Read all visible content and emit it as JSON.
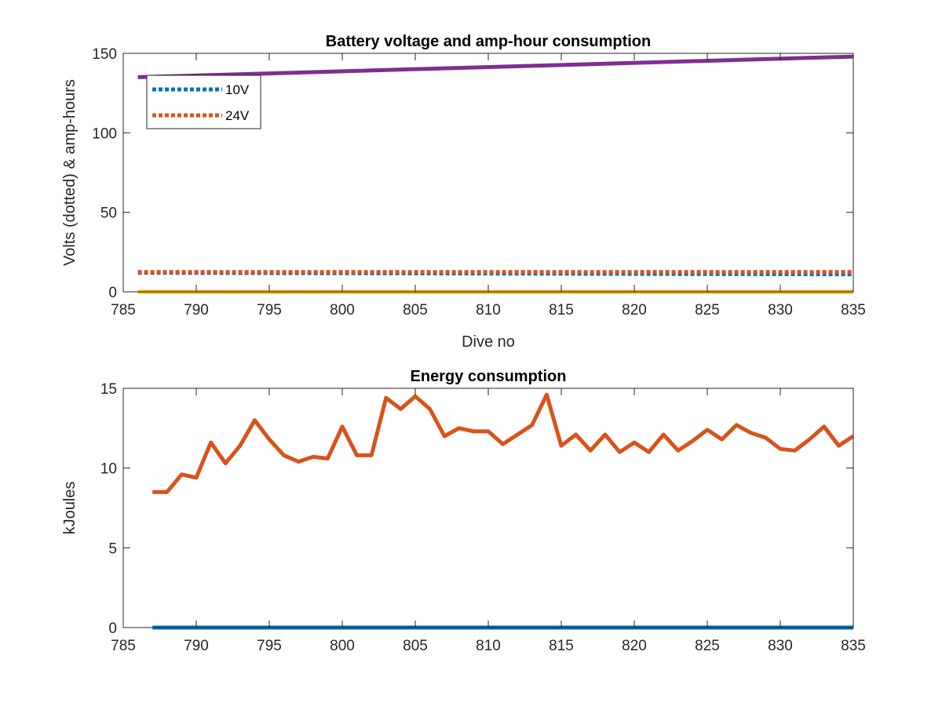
{
  "colors": {
    "series_10v": "#0072BD",
    "series_24v": "#D95319",
    "series_amp_hours_low": "#EDB120",
    "series_amp_hours_high": "#7E2F8E",
    "series_zero": "#0072BD",
    "series_energy": "#D95319",
    "axis": "#262626",
    "background": "#ffffff"
  },
  "chart_data": [
    {
      "type": "line",
      "title": "Battery voltage and amp-hour consumption",
      "xlabel": "Dive no",
      "ylabel": "Volts (dotted) & amp-hours",
      "xlim": [
        785,
        835
      ],
      "ylim": [
        0,
        150
      ],
      "xticks": [
        "785",
        "790",
        "795",
        "800",
        "805",
        "810",
        "815",
        "820",
        "825",
        "830",
        "835"
      ],
      "yticks": [
        "0",
        "50",
        "100",
        "150"
      ],
      "grid": false,
      "legend_placement": "top-left",
      "legend": [
        "10V",
        "24V"
      ],
      "series": [
        {
          "name": "10V",
          "style": "dotted",
          "x": [
            786,
            835
          ],
          "values": [
            12,
            11
          ]
        },
        {
          "name": "24V",
          "style": "dotted",
          "x": [
            786,
            835
          ],
          "values": [
            12.5,
            12.5
          ]
        },
        {
          "style": "solid",
          "x": [
            786,
            835
          ],
          "values": [
            0,
            0
          ]
        },
        {
          "style": "solid",
          "x": [
            786,
            835
          ],
          "values": [
            135,
            148
          ]
        }
      ]
    },
    {
      "type": "line",
      "title": "Energy consumption",
      "xlabel": "",
      "ylabel": "kJoules",
      "xlim": [
        785,
        835
      ],
      "ylim": [
        0,
        15
      ],
      "xticks": [
        "785",
        "790",
        "795",
        "800",
        "805",
        "810",
        "815",
        "820",
        "825",
        "830",
        "835"
      ],
      "yticks": [
        "0",
        "5",
        "10",
        "15"
      ],
      "grid": false,
      "series": [
        {
          "style": "solid",
          "x": [
            787,
            835
          ],
          "values": [
            0,
            0
          ]
        },
        {
          "style": "solid",
          "x": [
            787,
            788,
            789,
            790,
            791,
            792,
            793,
            794,
            795,
            796,
            797,
            798,
            799,
            800,
            801,
            802,
            803,
            804,
            805,
            806,
            807,
            808,
            809,
            810,
            811,
            812,
            813,
            814,
            815,
            816,
            817,
            818,
            819,
            820,
            821,
            822,
            823,
            824,
            825,
            826,
            827,
            828,
            829,
            830,
            831,
            832,
            833,
            834,
            835
          ],
          "values": [
            8.5,
            8.5,
            9.6,
            9.4,
            11.6,
            10.3,
            11.4,
            13.0,
            11.8,
            10.8,
            10.4,
            10.7,
            10.6,
            12.6,
            10.8,
            10.8,
            14.4,
            13.7,
            14.5,
            13.7,
            12.0,
            12.5,
            12.3,
            12.3,
            11.5,
            12.1,
            12.7,
            14.6,
            11.4,
            12.1,
            11.1,
            12.1,
            11.0,
            11.6,
            11.0,
            12.1,
            11.1,
            11.7,
            12.4,
            11.8,
            12.7,
            12.2,
            11.9,
            11.2,
            11.1,
            11.8,
            12.6,
            11.4,
            12.0
          ]
        }
      ]
    }
  ]
}
